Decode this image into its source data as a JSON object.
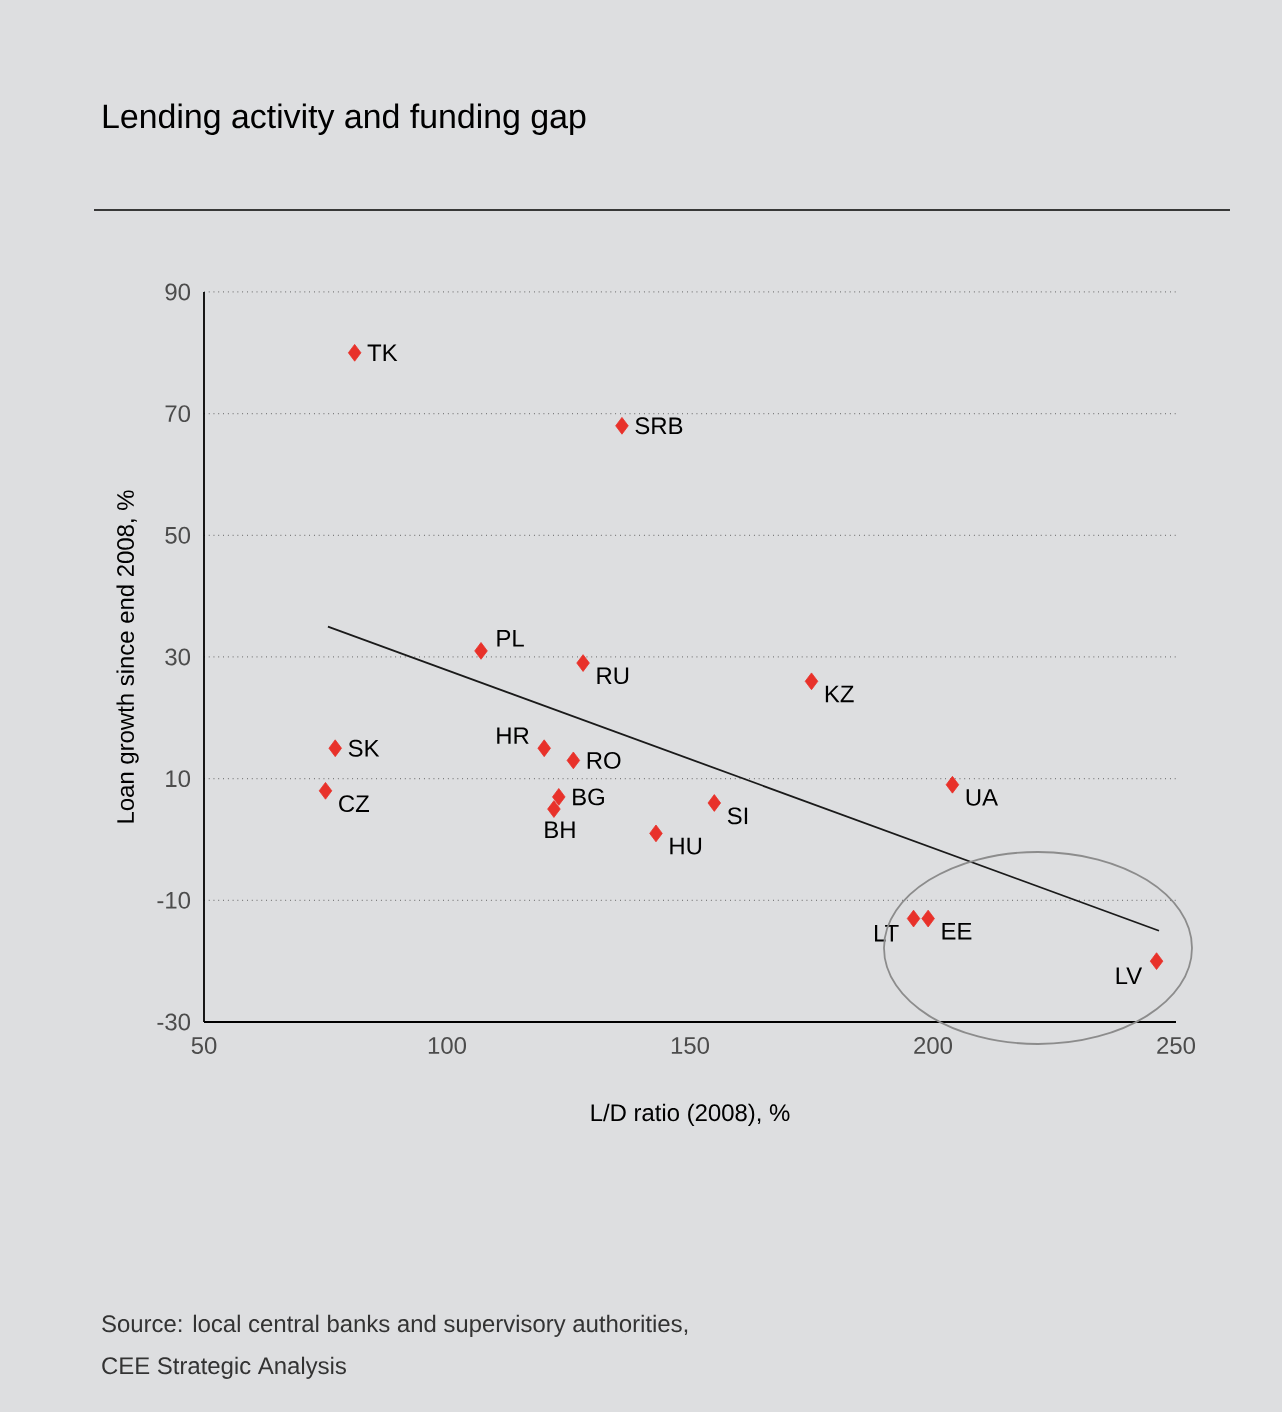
{
  "chart_data": {
    "type": "scatter",
    "title": "Lending activity and funding gap",
    "xlabel": "L/D ratio (2008), %",
    "ylabel": "Loan growth since end 2008, %",
    "xlim": [
      50,
      250
    ],
    "xticks": [
      50,
      100,
      150,
      200,
      250
    ],
    "ylim": [
      -30,
      90
    ],
    "yticks": [
      -30,
      -10,
      10,
      30,
      50,
      70,
      90
    ],
    "grid": "y",
    "marker": "diamond",
    "annotations": [
      "Source: local central banks and supervisory authorities,",
      "CEE Strategic Analysis"
    ],
    "series": [
      {
        "name": "TK",
        "color": "#e8312a",
        "x": [
          81
        ],
        "values": [
          80
        ]
      },
      {
        "name": "SRB",
        "color": "#e8312a",
        "x": [
          136
        ],
        "values": [
          68
        ]
      },
      {
        "name": "PL",
        "color": "#e8312a",
        "x": [
          107
        ],
        "values": [
          31
        ]
      },
      {
        "name": "RU",
        "color": "#e8312a",
        "x": [
          128
        ],
        "values": [
          29
        ]
      },
      {
        "name": "KZ",
        "color": "#e8312a",
        "x": [
          175
        ],
        "values": [
          26
        ]
      },
      {
        "name": "SK",
        "color": "#e8312a",
        "x": [
          77
        ],
        "values": [
          15
        ]
      },
      {
        "name": "CZ",
        "color": "#e8312a",
        "x": [
          75
        ],
        "values": [
          8
        ]
      },
      {
        "name": "HR",
        "color": "#e8312a",
        "x": [
          120
        ],
        "values": [
          15
        ]
      },
      {
        "name": "RO",
        "color": "#e8312a",
        "x": [
          126
        ],
        "values": [
          13
        ]
      },
      {
        "name": "BG",
        "color": "#e8312a",
        "x": [
          123
        ],
        "values": [
          7
        ]
      },
      {
        "name": "BH",
        "color": "#e8312a",
        "x": [
          122
        ],
        "values": [
          5
        ]
      },
      {
        "name": "HU",
        "color": "#e8312a",
        "x": [
          143
        ],
        "values": [
          1
        ]
      },
      {
        "name": "SI",
        "color": "#e8312a",
        "x": [
          155
        ],
        "values": [
          6
        ]
      },
      {
        "name": "UA",
        "color": "#e8312a",
        "x": [
          204
        ],
        "values": [
          9
        ]
      },
      {
        "name": "LT",
        "color": "#e8312a",
        "x": [
          196
        ],
        "values": [
          -13
        ]
      },
      {
        "name": "EE",
        "color": "#e8312a",
        "x": [
          199
        ],
        "values": [
          -13
        ]
      },
      {
        "name": "LV",
        "color": "#e8312a",
        "x": [
          246
        ],
        "values": [
          -20
        ]
      },
      {
        "type": "line",
        "color": "#1a1a1a",
        "marker": "none",
        "x": [
          75.5,
          246.5
        ],
        "values": [
          35,
          -15
        ]
      }
    ]
  }
}
